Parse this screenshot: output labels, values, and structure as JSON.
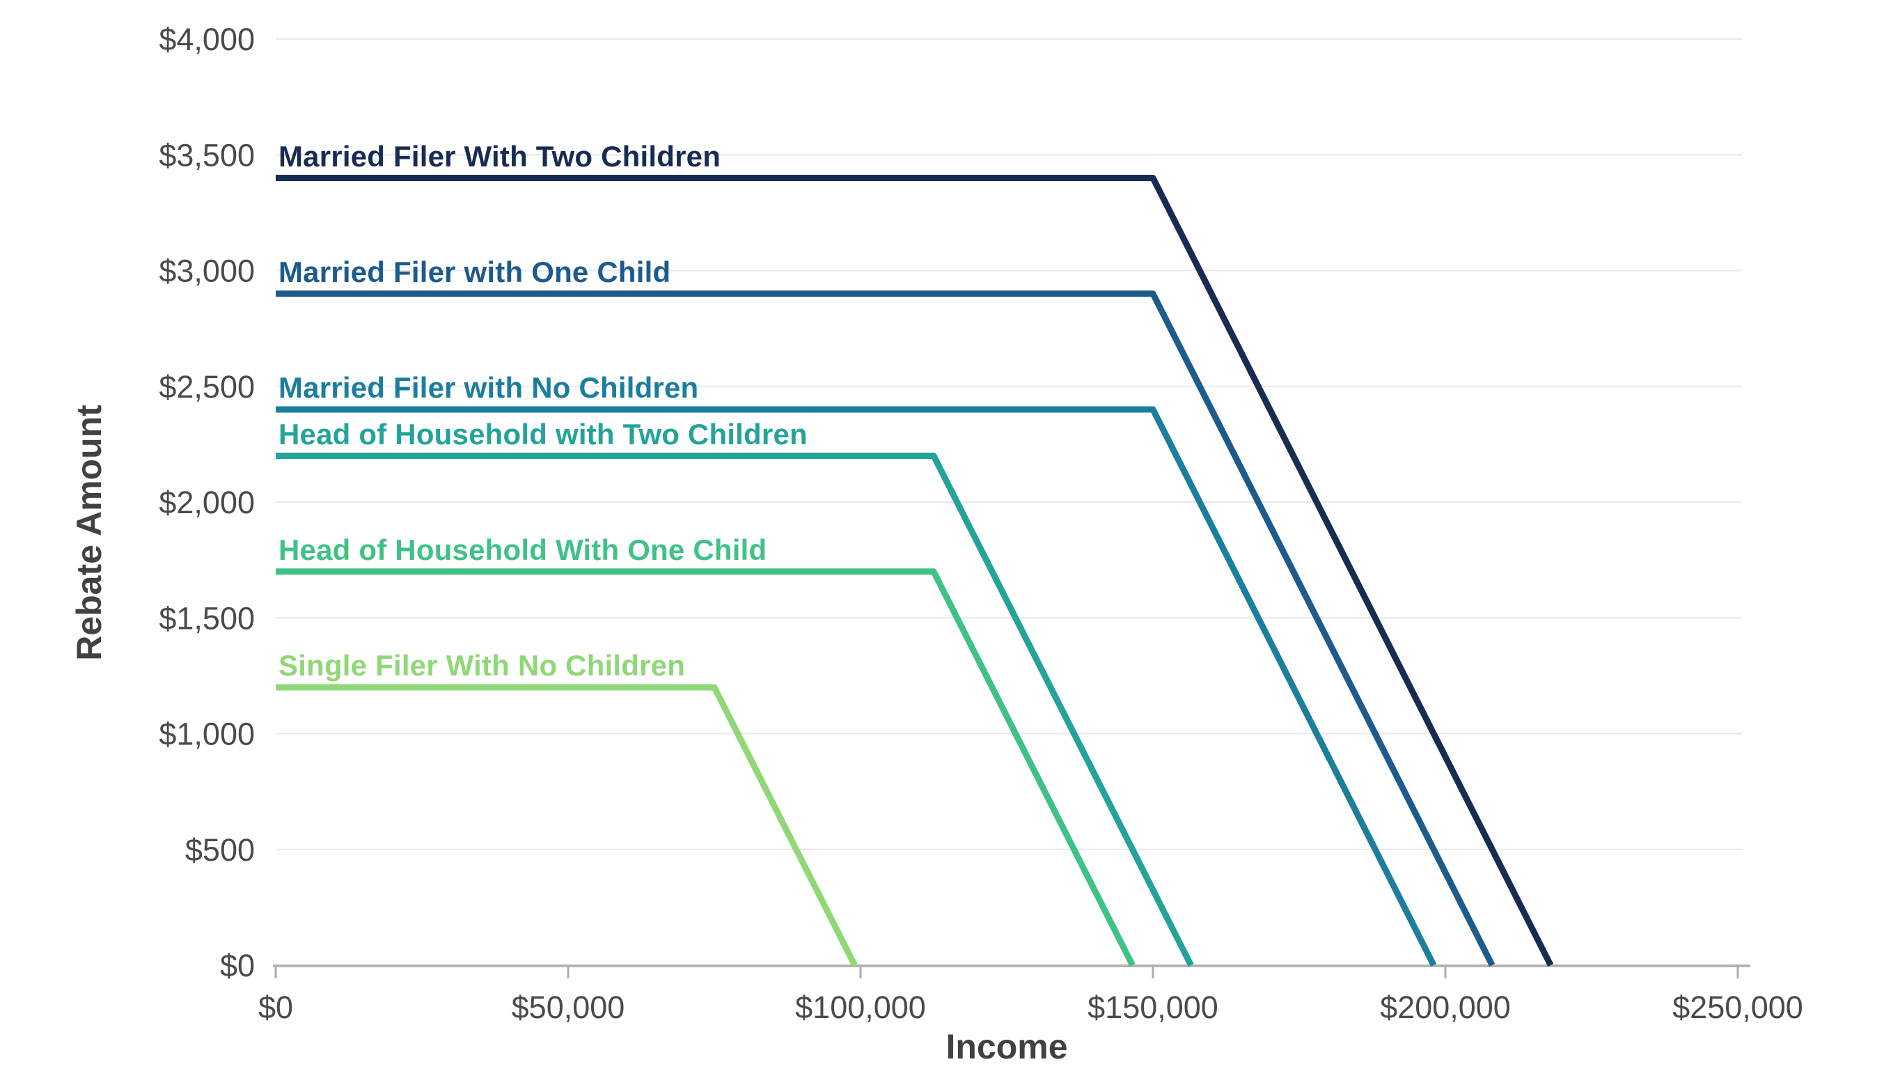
{
  "chart_data": {
    "type": "line",
    "title": "",
    "xlabel": "Income",
    "ylabel": "Rebate Amount",
    "grid": "horizontal",
    "legend": "inline-colored-labels",
    "x_axis": {
      "min": 0,
      "max": 250000,
      "ticks": [
        {
          "value": 0,
          "label": "$0"
        },
        {
          "value": 50000,
          "label": "$50,000"
        },
        {
          "value": 100000,
          "label": "$100,000"
        },
        {
          "value": 150000,
          "label": "$150,000"
        },
        {
          "value": 200000,
          "label": "$200,000"
        },
        {
          "value": 250000,
          "label": "$250,000"
        }
      ]
    },
    "y_axis": {
      "min": 0,
      "max": 4000,
      "ticks": [
        {
          "value": 0,
          "label": "$0"
        },
        {
          "value": 500,
          "label": "$500"
        },
        {
          "value": 1000,
          "label": "$1,000"
        },
        {
          "value": 1500,
          "label": "$1,500"
        },
        {
          "value": 2000,
          "label": "$2,000"
        },
        {
          "value": 2500,
          "label": "$2,500"
        },
        {
          "value": 3000,
          "label": "$3,000"
        },
        {
          "value": 3500,
          "label": "$3,500"
        },
        {
          "value": 4000,
          "label": "$4,000"
        }
      ]
    },
    "series": [
      {
        "name": "Married Filer With Two Children",
        "color": "#182c52",
        "flat_value": 3400,
        "points": [
          [
            0,
            3400
          ],
          [
            150000,
            3400
          ],
          [
            218000,
            0
          ]
        ]
      },
      {
        "name": "Married Filer with One Child",
        "color": "#1d5b8c",
        "flat_value": 2900,
        "points": [
          [
            0,
            2900
          ],
          [
            150000,
            2900
          ],
          [
            208000,
            0
          ]
        ]
      },
      {
        "name": "Married Filer with No Children",
        "color": "#1b7e9d",
        "flat_value": 2400,
        "points": [
          [
            0,
            2400
          ],
          [
            150000,
            2400
          ],
          [
            198000,
            0
          ]
        ]
      },
      {
        "name": "Head of Household with Two Children",
        "color": "#24a39a",
        "flat_value": 2200,
        "points": [
          [
            0,
            2200
          ],
          [
            112500,
            2200
          ],
          [
            156500,
            0
          ]
        ]
      },
      {
        "name": "Head of Household With One Child",
        "color": "#40c287",
        "flat_value": 1700,
        "points": [
          [
            0,
            1700
          ],
          [
            112500,
            1700
          ],
          [
            146500,
            0
          ]
        ]
      },
      {
        "name": "Single Filer With No Children",
        "color": "#90d877",
        "flat_value": 1200,
        "points": [
          [
            0,
            1200
          ],
          [
            75000,
            1200
          ],
          [
            99000,
            0
          ]
        ]
      }
    ],
    "style": {
      "background_color": "#ffffff",
      "grid_color": "#e8e8e8",
      "axis_color": "#b3b3b3",
      "tick_mark_color": "#adadad",
      "tick_label_color": "#4a4a4a",
      "axis_title_color": "#414141",
      "line_width": 9
    }
  }
}
